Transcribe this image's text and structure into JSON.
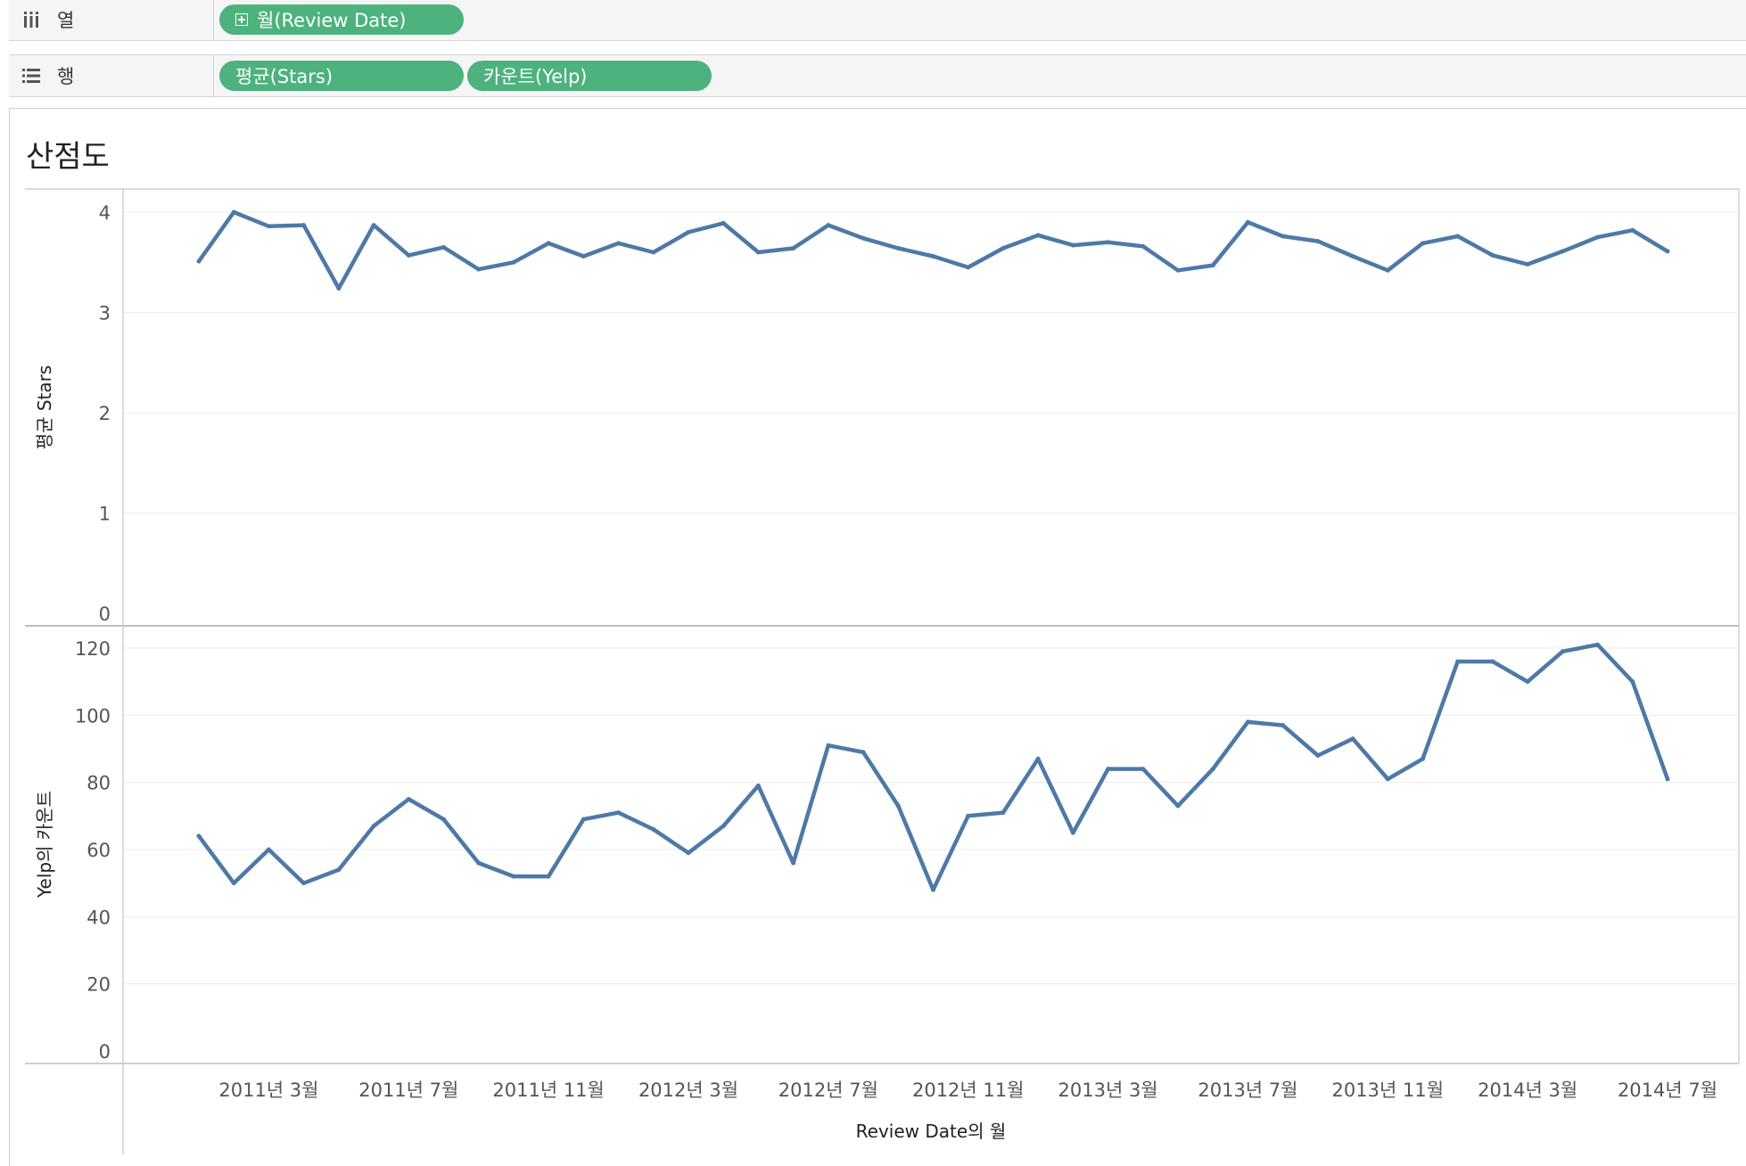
{
  "shelves": {
    "columns": {
      "label": "열",
      "icon": "columns-shelf-icon",
      "pills": [
        "월(Review Date)"
      ]
    },
    "rows": {
      "label": "행",
      "icon": "rows-shelf-icon",
      "pills": [
        "평균(Stars)",
        "카운트(Yelp)"
      ]
    }
  },
  "sheet": {
    "title": "산점도"
  },
  "colors": {
    "line": "#4e79a7",
    "pill": "#4db27d",
    "grid": "#ececec",
    "border": "#cfcfcf"
  },
  "chart_data": {
    "type": "line",
    "xlabel": "Review Date의 월",
    "x_ticks": [
      "2011년 3월",
      "2011년 7월",
      "2011년 11월",
      "2012년 3월",
      "2012년 7월",
      "2012년 11월",
      "2013년 3월",
      "2013년 7월",
      "2013년 11월",
      "2014년 3월",
      "2014년 7월"
    ],
    "x": [
      "2011-01",
      "2011-02",
      "2011-03",
      "2011-04",
      "2011-05",
      "2011-06",
      "2011-07",
      "2011-08",
      "2011-09",
      "2011-10",
      "2011-11",
      "2011-12",
      "2012-01",
      "2012-02",
      "2012-03",
      "2012-04",
      "2012-05",
      "2012-06",
      "2012-07",
      "2012-08",
      "2012-09",
      "2012-10",
      "2012-11",
      "2012-12",
      "2013-01",
      "2013-02",
      "2013-03",
      "2013-04",
      "2013-05",
      "2013-06",
      "2013-07",
      "2013-08",
      "2013-09",
      "2013-10",
      "2013-11",
      "2013-12",
      "2014-01",
      "2014-02",
      "2014-03",
      "2014-04",
      "2014-05",
      "2014-06",
      "2014-07"
    ],
    "panels": [
      {
        "ylabel": "평균 Stars",
        "ylim": [
          0,
          4.2
        ],
        "y_ticks": [
          0,
          1,
          2,
          3,
          4
        ],
        "values": [
          3.51,
          4.0,
          3.86,
          3.87,
          3.24,
          3.87,
          3.57,
          3.65,
          3.43,
          3.5,
          3.69,
          3.56,
          3.69,
          3.6,
          3.8,
          3.89,
          3.6,
          3.64,
          3.87,
          3.74,
          3.64,
          3.56,
          3.45,
          3.64,
          3.77,
          3.67,
          3.7,
          3.66,
          3.42,
          3.47,
          3.9,
          3.76,
          3.71,
          3.56,
          3.42,
          3.69,
          3.76,
          3.57,
          3.48,
          3.61,
          3.75,
          3.82,
          3.61
        ]
      },
      {
        "ylabel": "Yelp의 카운트",
        "ylim": [
          0,
          124
        ],
        "y_ticks": [
          0,
          20,
          40,
          60,
          80,
          100,
          120
        ],
        "values": [
          64,
          50,
          60,
          50,
          54,
          67,
          75,
          69,
          56,
          52,
          52,
          69,
          71,
          66,
          59,
          67,
          79,
          56,
          91,
          89,
          73,
          48,
          70,
          71,
          87,
          65,
          84,
          84,
          73,
          84,
          98,
          97,
          88,
          93,
          81,
          87,
          116,
          116,
          110,
          119,
          121,
          110,
          81
        ]
      }
    ],
    "grid": true,
    "legend": "none"
  }
}
